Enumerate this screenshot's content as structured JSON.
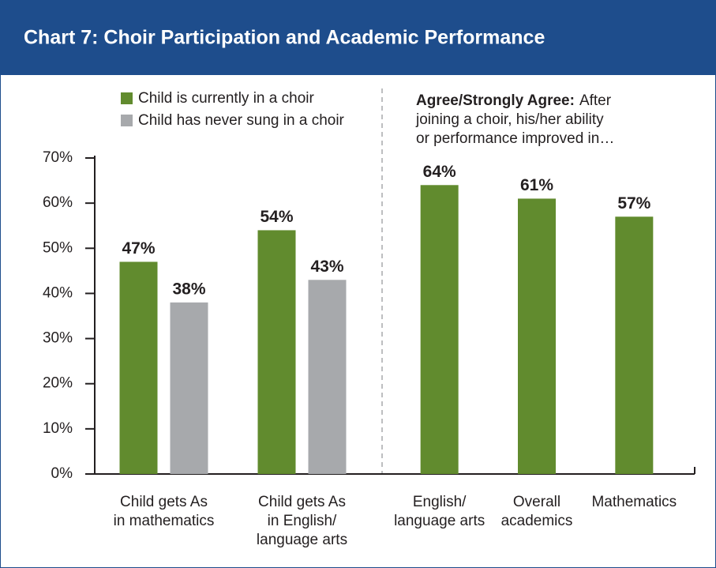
{
  "chart_data": [
    {
      "type": "bar",
      "title": "Chart 7: Choir Participation and Academic Performance",
      "categories": [
        [
          "Child gets As",
          "in mathematics"
        ],
        [
          "Child gets As",
          "in English/",
          "language arts"
        ]
      ],
      "series": [
        {
          "name": "Child is currently in a choir",
          "color": "#618b2e",
          "values": [
            47,
            54
          ],
          "value_labels": [
            "47%",
            "54%"
          ]
        },
        {
          "name": "Child has never sung in a choir",
          "color": "#a7a9ac",
          "values": [
            38,
            43
          ],
          "value_labels": [
            "38%",
            "43%"
          ]
        }
      ],
      "ylim": [
        0,
        70
      ],
      "yticks": [
        {
          "value": 0,
          "label": "0%"
        },
        {
          "value": 10,
          "label": "10%"
        },
        {
          "value": 20,
          "label": "20%"
        },
        {
          "value": 30,
          "label": "30%"
        },
        {
          "value": 40,
          "label": "40%"
        },
        {
          "value": 50,
          "label": "50%"
        },
        {
          "value": 60,
          "label": "60%"
        },
        {
          "value": 70,
          "label": "70%"
        }
      ]
    },
    {
      "type": "bar",
      "annotation_bold": "Agree/Strongly Agree:",
      "annotation": [
        "After",
        "joining a choir, his/her ability",
        "or performance improved in…"
      ],
      "categories": [
        [
          "English/",
          "language arts"
        ],
        [
          "Overall",
          "academics"
        ],
        [
          "Mathematics"
        ]
      ],
      "values": [
        64,
        61,
        57
      ],
      "value_labels": [
        "64%",
        "61%",
        "57%"
      ],
      "color": "#618b2e",
      "ylim": [
        0,
        70
      ]
    }
  ]
}
